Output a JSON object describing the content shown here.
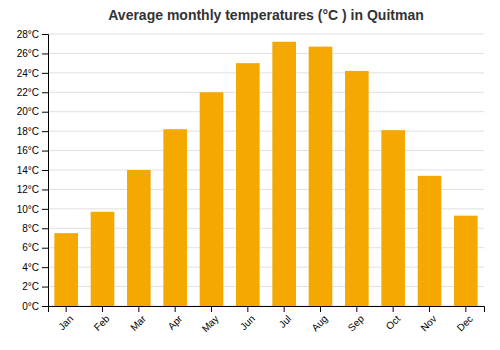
{
  "chart_data": {
    "type": "bar",
    "title": "Average monthly temperatures (°C ) in Quitman",
    "categories": [
      "Jan",
      "Feb",
      "Mar",
      "Apr",
      "May",
      "Jun",
      "Jul",
      "Aug",
      "Sep",
      "Oct",
      "Nov",
      "Dec"
    ],
    "values": [
      7.5,
      9.7,
      14.0,
      18.2,
      22.0,
      25.0,
      27.2,
      26.7,
      24.2,
      18.1,
      13.4,
      9.3
    ],
    "color": "#F5A800",
    "ylim": [
      0,
      28
    ],
    "yticks": [
      {
        "value": 0,
        "label": "0°C"
      },
      {
        "value": 2,
        "label": "2°C"
      },
      {
        "value": 4,
        "label": "4°C"
      },
      {
        "value": 6,
        "label": "6°C"
      },
      {
        "value": 8,
        "label": "8°C"
      },
      {
        "value": 10,
        "label": "10°C"
      },
      {
        "value": 12,
        "label": "12°C"
      },
      {
        "value": 14,
        "label": "14°C"
      },
      {
        "value": 16,
        "label": "16°C"
      },
      {
        "value": 18,
        "label": "18°C"
      },
      {
        "value": 20,
        "label": "20°C"
      },
      {
        "value": 22,
        "label": "22°C"
      },
      {
        "value": 24,
        "label": "24°C"
      },
      {
        "value": 26,
        "label": "26°C"
      },
      {
        "value": 28,
        "label": "28°C"
      }
    ],
    "grid": true
  }
}
